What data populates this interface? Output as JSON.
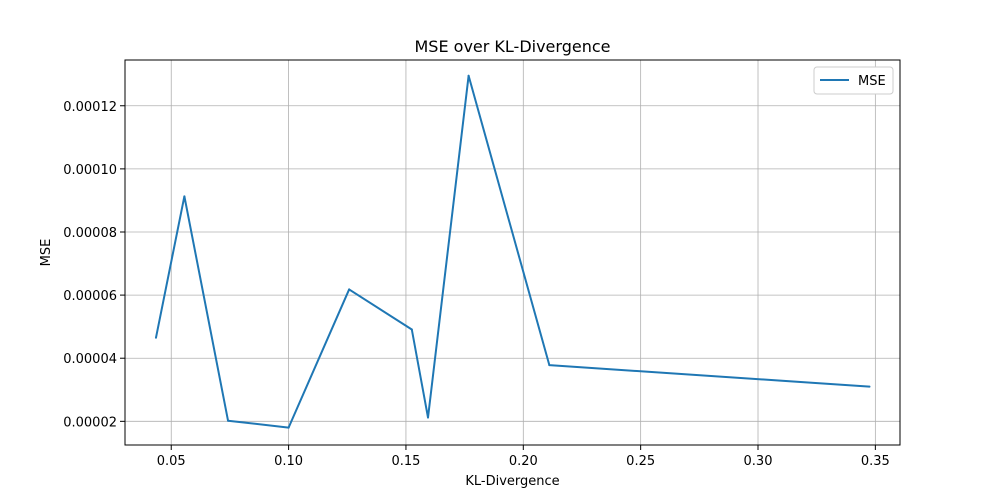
{
  "chart_data": {
    "type": "line",
    "title": "MSE over KL-Divergence",
    "xlabel": "KL-Divergence",
    "ylabel": "MSE",
    "xlim": [
      0.0303,
      0.3605
    ],
    "ylim": [
      1.25e-05,
      0.0001345
    ],
    "xticks": [
      0.05,
      0.1,
      0.15,
      0.2,
      0.25,
      0.3,
      0.35
    ],
    "xtick_labels": [
      "0.05",
      "0.10",
      "0.15",
      "0.20",
      "0.25",
      "0.30",
      "0.35"
    ],
    "yticks": [
      2e-05,
      4e-05,
      6e-05,
      8e-05,
      0.0001,
      0.00012
    ],
    "ytick_labels": [
      "0.00002",
      "0.00004",
      "0.00006",
      "0.00008",
      "0.00010",
      "0.00012"
    ],
    "grid": true,
    "legend_position": "top-right",
    "series": [
      {
        "name": "MSE",
        "color": "#1f77b4",
        "x": [
          0.0435,
          0.0556,
          0.0742,
          0.1,
          0.1258,
          0.1525,
          0.1594,
          0.1767,
          0.2111,
          0.3475
        ],
        "y": [
          4.65e-05,
          9.13e-05,
          2.02e-05,
          1.8e-05,
          6.18e-05,
          4.91e-05,
          2.12e-05,
          0.0001295,
          3.78e-05,
          3.1e-05
        ]
      }
    ]
  }
}
